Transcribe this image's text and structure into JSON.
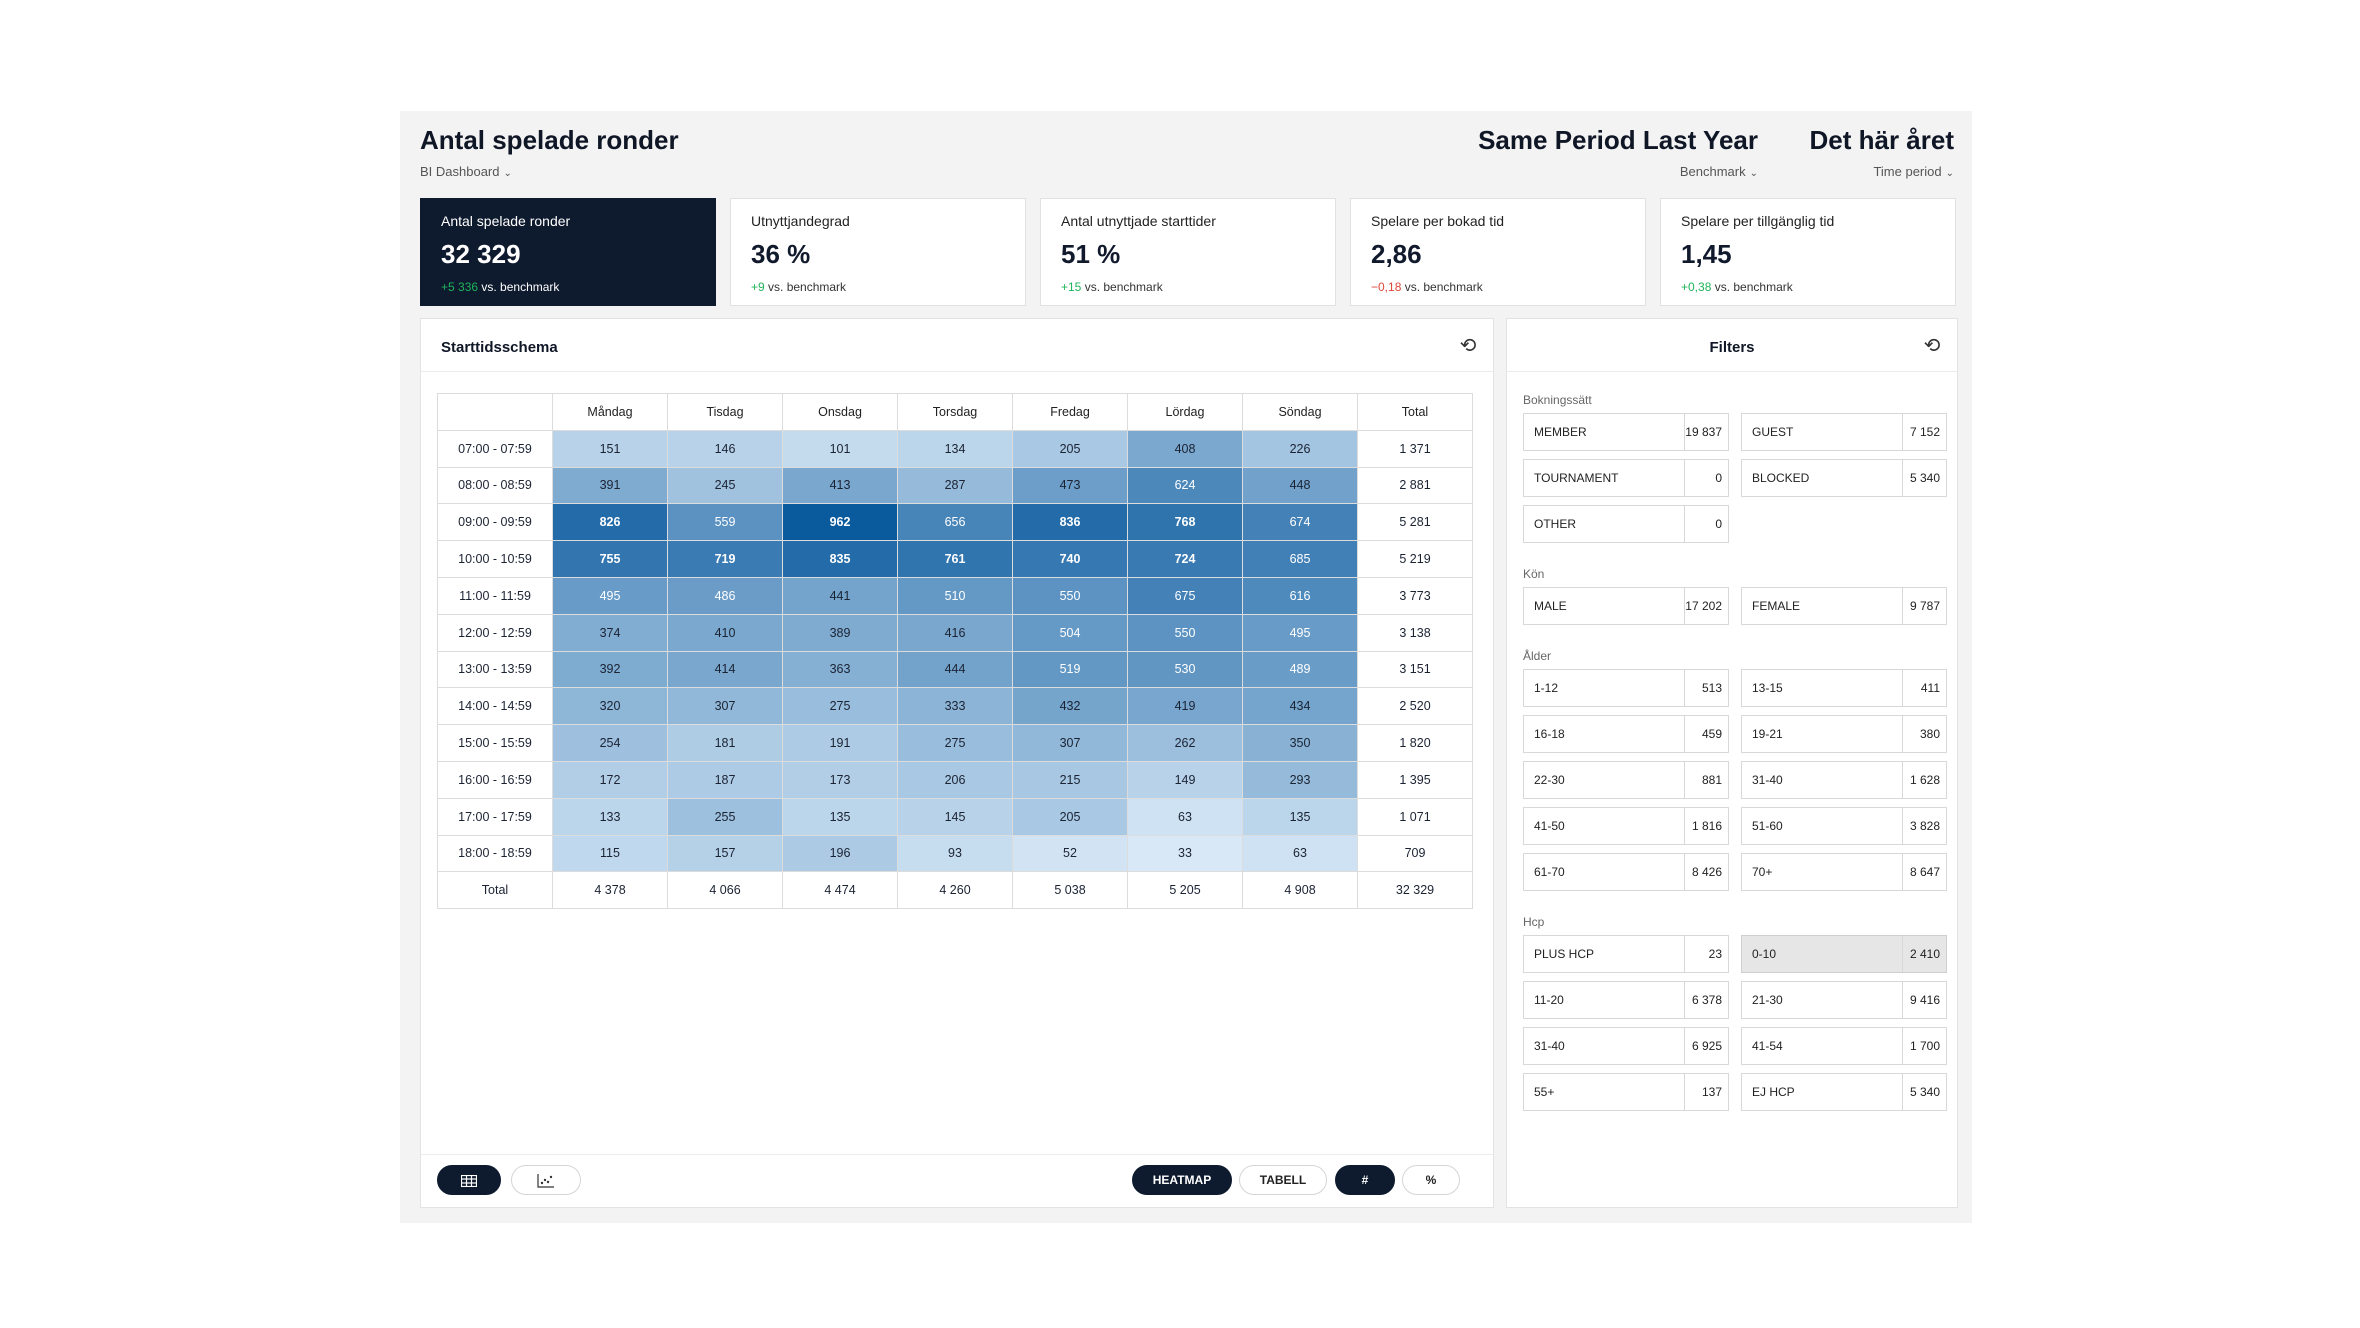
{
  "header": {
    "title": "Antal spelade ronder",
    "subtitle": "BI Dashboard",
    "comparison_title": "Same Period Last Year",
    "comparison_sub": "Benchmark",
    "period_title": "Det här året",
    "period_sub": "Time period"
  },
  "kpis": [
    {
      "label": "Antal spelade ronder",
      "value": "32 329",
      "delta": "+5 336",
      "delta_suffix": " vs. benchmark",
      "trend": "pos"
    },
    {
      "label": "Utnyttjandegrad",
      "value": "36 %",
      "delta": "+9",
      "delta_suffix": " vs. benchmark",
      "trend": "pos"
    },
    {
      "label": "Antal utnyttjade starttider",
      "value": "51 %",
      "delta": "+15",
      "delta_suffix": " vs. benchmark",
      "trend": "pos"
    },
    {
      "label": "Spelare per bokad tid",
      "value": "2,86",
      "delta": "−0,18",
      "delta_suffix": " vs. benchmark",
      "trend": "neg"
    },
    {
      "label": "Spelare per tillgänglig tid",
      "value": "1,45",
      "delta": "+0,38",
      "delta_suffix": " vs. benchmark",
      "trend": "pos"
    }
  ],
  "schedule": {
    "title": "Starttidsschema",
    "columns": [
      "Måndag",
      "Tisdag",
      "Onsdag",
      "Torsdag",
      "Fredag",
      "Lördag",
      "Söndag"
    ],
    "total_label": "Total",
    "rows": [
      {
        "time": "07:00 - 07:59",
        "values": [
          151,
          146,
          101,
          134,
          205,
          408,
          226
        ],
        "total": "1 371"
      },
      {
        "time": "08:00 - 08:59",
        "values": [
          391,
          245,
          413,
          287,
          473,
          624,
          448
        ],
        "total": "2 881"
      },
      {
        "time": "09:00 - 09:59",
        "values": [
          826,
          559,
          962,
          656,
          836,
          768,
          674
        ],
        "total": "5 281"
      },
      {
        "time": "10:00 - 10:59",
        "values": [
          755,
          719,
          835,
          761,
          740,
          724,
          685
        ],
        "total": "5 219"
      },
      {
        "time": "11:00 - 11:59",
        "values": [
          495,
          486,
          441,
          510,
          550,
          675,
          616
        ],
        "total": "3 773"
      },
      {
        "time": "12:00 - 12:59",
        "values": [
          374,
          410,
          389,
          416,
          504,
          550,
          495
        ],
        "total": "3 138"
      },
      {
        "time": "13:00 - 13:59",
        "values": [
          392,
          414,
          363,
          444,
          519,
          530,
          489
        ],
        "total": "3 151"
      },
      {
        "time": "14:00 - 14:59",
        "values": [
          320,
          307,
          275,
          333,
          432,
          419,
          434
        ],
        "total": "2 520"
      },
      {
        "time": "15:00 - 15:59",
        "values": [
          254,
          181,
          191,
          275,
          307,
          262,
          350
        ],
        "total": "1 820"
      },
      {
        "time": "16:00 - 16:59",
        "values": [
          172,
          187,
          173,
          206,
          215,
          149,
          293
        ],
        "total": "1 395"
      },
      {
        "time": "17:00 - 17:59",
        "values": [
          133,
          255,
          135,
          145,
          205,
          63,
          135
        ],
        "total": "1 071"
      },
      {
        "time": "18:00 - 18:59",
        "values": [
          115,
          157,
          196,
          93,
          52,
          33,
          63
        ],
        "total": "709"
      }
    ],
    "totals_row": {
      "label": "Total",
      "values": [
        "4 378",
        "4 066",
        "4 474",
        "4 260",
        "5 038",
        "5 205",
        "4 908"
      ],
      "total": "32 329"
    },
    "toolbar": {
      "heatmap_label": "HEATMAP",
      "table_label": "TABELL",
      "count_label": "#",
      "percent_label": "%"
    }
  },
  "filters": {
    "title": "Filters",
    "groups": [
      {
        "label": "Bokningssätt",
        "items": [
          {
            "name": "MEMBER",
            "count": "19 837"
          },
          {
            "name": "GUEST",
            "count": "7 152"
          },
          {
            "name": "TOURNAMENT",
            "count": "0"
          },
          {
            "name": "BLOCKED",
            "count": "5 340"
          },
          {
            "name": "OTHER",
            "count": "0"
          }
        ]
      },
      {
        "label": "Kön",
        "items": [
          {
            "name": "MALE",
            "count": "17 202"
          },
          {
            "name": "FEMALE",
            "count": "9 787"
          }
        ]
      },
      {
        "label": "Ålder",
        "items": [
          {
            "name": "1-12",
            "count": "513"
          },
          {
            "name": "13-15",
            "count": "411"
          },
          {
            "name": "16-18",
            "count": "459"
          },
          {
            "name": "19-21",
            "count": "380"
          },
          {
            "name": "22-30",
            "count": "881"
          },
          {
            "name": "31-40",
            "count": "1 628"
          },
          {
            "name": "41-50",
            "count": "1 816"
          },
          {
            "name": "51-60",
            "count": "3 828"
          },
          {
            "name": "61-70",
            "count": "8 426"
          },
          {
            "name": "70+",
            "count": "8 647"
          }
        ]
      },
      {
        "label": "Hcp",
        "items": [
          {
            "name": "PLUS HCP",
            "count": "23"
          },
          {
            "name": "0-10",
            "count": "2 410",
            "selected": true
          },
          {
            "name": "11-20",
            "count": "6 378"
          },
          {
            "name": "21-30",
            "count": "9 416"
          },
          {
            "name": "31-40",
            "count": "6 925"
          },
          {
            "name": "41-54",
            "count": "1 700"
          },
          {
            "name": "55+",
            "count": "137"
          },
          {
            "name": "EJ HCP",
            "count": "5 340"
          }
        ]
      }
    ]
  },
  "colors": {
    "dark": "#0e1a2e",
    "heat_low": "#e4f1fc",
    "heat_high": "#0a5a9e",
    "positive": "#1fb35a",
    "negative": "#e0473a"
  }
}
